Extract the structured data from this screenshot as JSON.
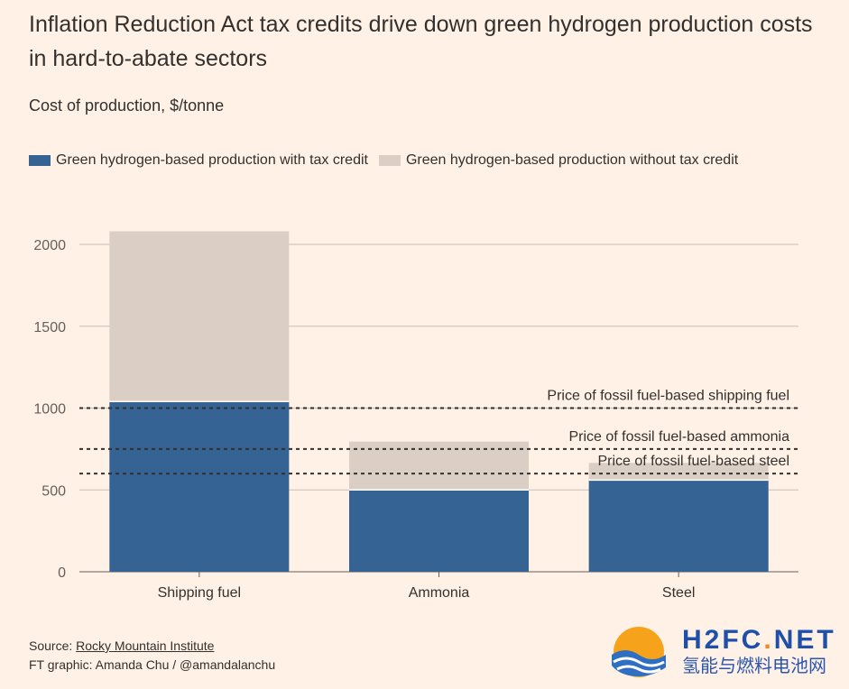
{
  "title": "Inflation Reduction Act tax credits drive down green hydrogen production costs in hard-to-abate sectors",
  "subtitle": "Cost of production, $/tonne",
  "legend": {
    "with_credit": "Green hydrogen-based production with tax credit",
    "without_credit": "Green hydrogen-based production without tax credit"
  },
  "colors": {
    "with_credit": "#356394",
    "without_credit": "#dbcec4",
    "background": "#fff1e5",
    "gridline": "#c9bfb8",
    "reference_line": "#33302e"
  },
  "chart_data": {
    "type": "bar",
    "stacked": false,
    "categories": [
      "Shipping fuel",
      "Ammonia",
      "Steel"
    ],
    "series": [
      {
        "name": "Green hydrogen-based production with tax credit",
        "values": [
          1040,
          500,
          560
        ]
      },
      {
        "name": "Green hydrogen-based production without tax credit",
        "values": [
          2080,
          795,
          665
        ]
      }
    ],
    "ylim": [
      0,
      2000
    ],
    "yticks": [
      0,
      500,
      1000,
      1500,
      2000
    ],
    "ytick_labels": [
      "0",
      "500",
      "1000",
      "1500",
      "2000"
    ],
    "grid": true,
    "reference_lines": [
      {
        "label": "Price of fossil fuel-based shipping fuel",
        "value": 1000
      },
      {
        "label": "Price of fossil fuel-based ammonia",
        "value": 750
      },
      {
        "label": "Price of fossil fuel-based steel",
        "value": 600
      }
    ],
    "xlabel": "",
    "ylabel": ""
  },
  "footer": {
    "source_prefix": "Source: ",
    "source_link": "Rocky Mountain Institute",
    "credit": "FT graphic: Amanda Chu / @amandalanchu"
  },
  "watermark": {
    "brand_main": "H2FC",
    "brand_dot": ".",
    "brand_tld": "NET",
    "brand_sub": "氢能与燃料电池网"
  }
}
